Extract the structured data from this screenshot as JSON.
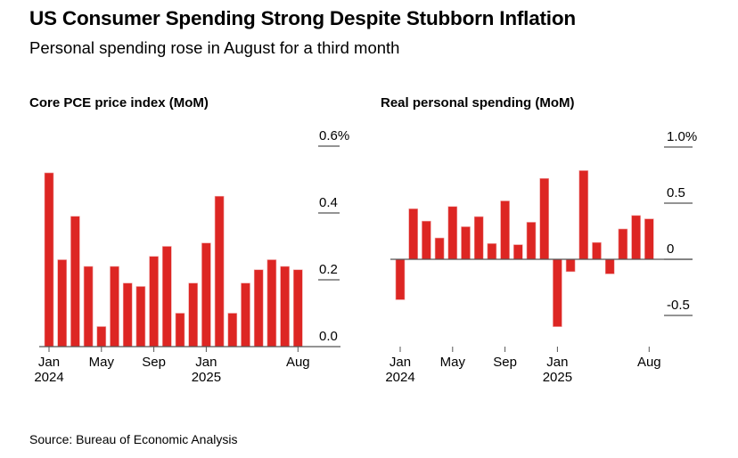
{
  "title": "US Consumer Spending Strong Despite Stubborn Inflation",
  "subtitle": "Personal spending rose in August for a third month",
  "source": "Source: Bureau of Economic Analysis",
  "colors": {
    "bar": "#dd2623",
    "axis": "#555555"
  },
  "chart_data": [
    {
      "type": "bar",
      "title": "Core PCE price index (MoM)",
      "categories": [
        "Jan 2024",
        "Feb 2024",
        "Mar 2024",
        "Apr 2024",
        "May 2024",
        "Jun 2024",
        "Jul 2024",
        "Aug 2024",
        "Sep 2024",
        "Oct 2024",
        "Nov 2024",
        "Dec 2024",
        "Jan 2025",
        "Feb 2025",
        "Mar 2025",
        "Apr 2025",
        "May 2025",
        "Jun 2025",
        "Jul 2025",
        "Aug 2025"
      ],
      "values": [
        0.52,
        0.26,
        0.39,
        0.24,
        0.06,
        0.24,
        0.19,
        0.18,
        0.27,
        0.3,
        0.1,
        0.19,
        0.31,
        0.45,
        0.1,
        0.19,
        0.23,
        0.26,
        0.24,
        0.23
      ],
      "ylim": [
        0,
        0.6
      ],
      "y_ticks": [
        {
          "v": 0.6,
          "label": "0.6%"
        },
        {
          "v": 0.4,
          "label": "0.4"
        },
        {
          "v": 0.2,
          "label": "0.2"
        },
        {
          "v": 0,
          "label": "0.0"
        }
      ],
      "x_ticks": [
        {
          "i": 0,
          "label": "Jan",
          "label2": "2024"
        },
        {
          "i": 4,
          "label": "May",
          "label2": ""
        },
        {
          "i": 8,
          "label": "Sep",
          "label2": ""
        },
        {
          "i": 12,
          "label": "Jan",
          "label2": "2025"
        },
        {
          "i": 19,
          "label": "Aug",
          "label2": ""
        }
      ]
    },
    {
      "type": "bar",
      "title": "Real personal spending (MoM)",
      "categories": [
        "Jan 2024",
        "Feb 2024",
        "Mar 2024",
        "Apr 2024",
        "May 2024",
        "Jun 2024",
        "Jul 2024",
        "Aug 2024",
        "Sep 2024",
        "Oct 2024",
        "Nov 2024",
        "Dec 2024",
        "Jan 2025",
        "Feb 2025",
        "Mar 2025",
        "Apr 2025",
        "May 2025",
        "Jun 2025",
        "Jul 2025",
        "Aug 2025"
      ],
      "values": [
        -0.36,
        0.45,
        0.34,
        0.19,
        0.47,
        0.29,
        0.38,
        0.14,
        0.52,
        0.13,
        0.33,
        0.72,
        -0.6,
        -0.11,
        0.79,
        0.15,
        -0.13,
        0.27,
        0.39,
        0.36
      ],
      "ylim": [
        -0.8,
        1.0
      ],
      "y_ticks": [
        {
          "v": 1.0,
          "label": "1.0%"
        },
        {
          "v": 0.5,
          "label": "0.5"
        },
        {
          "v": 0,
          "label": "0"
        },
        {
          "v": -0.5,
          "label": "-0.5"
        }
      ],
      "x_ticks": [
        {
          "i": 0,
          "label": "Jan",
          "label2": "2024"
        },
        {
          "i": 4,
          "label": "May",
          "label2": ""
        },
        {
          "i": 8,
          "label": "Sep",
          "label2": ""
        },
        {
          "i": 12,
          "label": "Jan",
          "label2": "2025"
        },
        {
          "i": 19,
          "label": "Aug",
          "label2": ""
        }
      ]
    }
  ]
}
